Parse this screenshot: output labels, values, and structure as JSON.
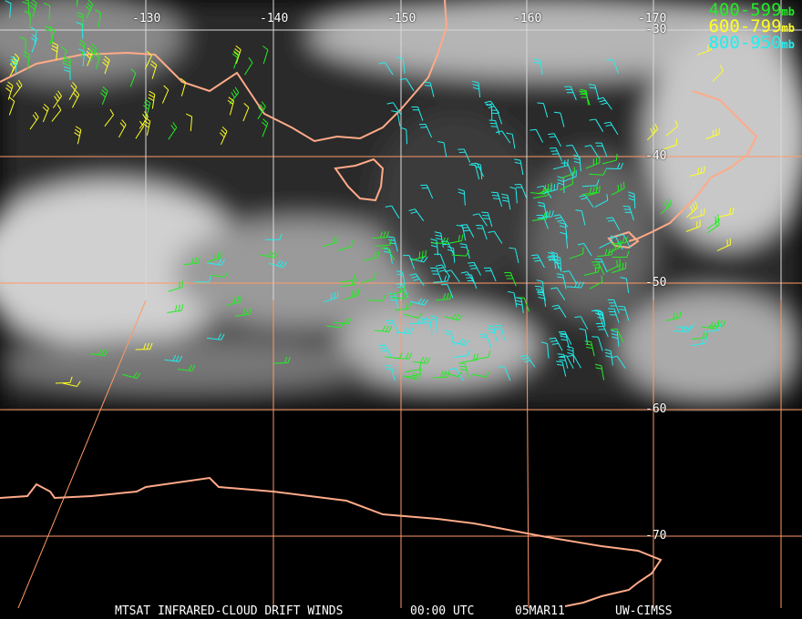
{
  "title_bar": {
    "satellite": "MTSAT INFRARED-CLOUD DRIFT WINDS",
    "time": "00:00 UTC",
    "date": "05MAR11",
    "source": "UW-CIMSS"
  },
  "legend": [
    {
      "range": "400-599",
      "unit": "mb",
      "color": "#22ee22"
    },
    {
      "range": "600-799",
      "unit": "mb",
      "color": "#ffff22"
    },
    {
      "range": "800-950",
      "unit": "mb",
      "color": "#22eeee"
    }
  ],
  "longitude_labels": [
    "-130",
    "-140",
    "-150",
    "-160",
    "-170"
  ],
  "latitude_labels": [
    "-30",
    "-40",
    "-50",
    "-60",
    "-70"
  ],
  "colors": {
    "grid_white": "#d8d8d8",
    "grid_orange": "#ff9966",
    "coastline": "#ffaa88"
  }
}
